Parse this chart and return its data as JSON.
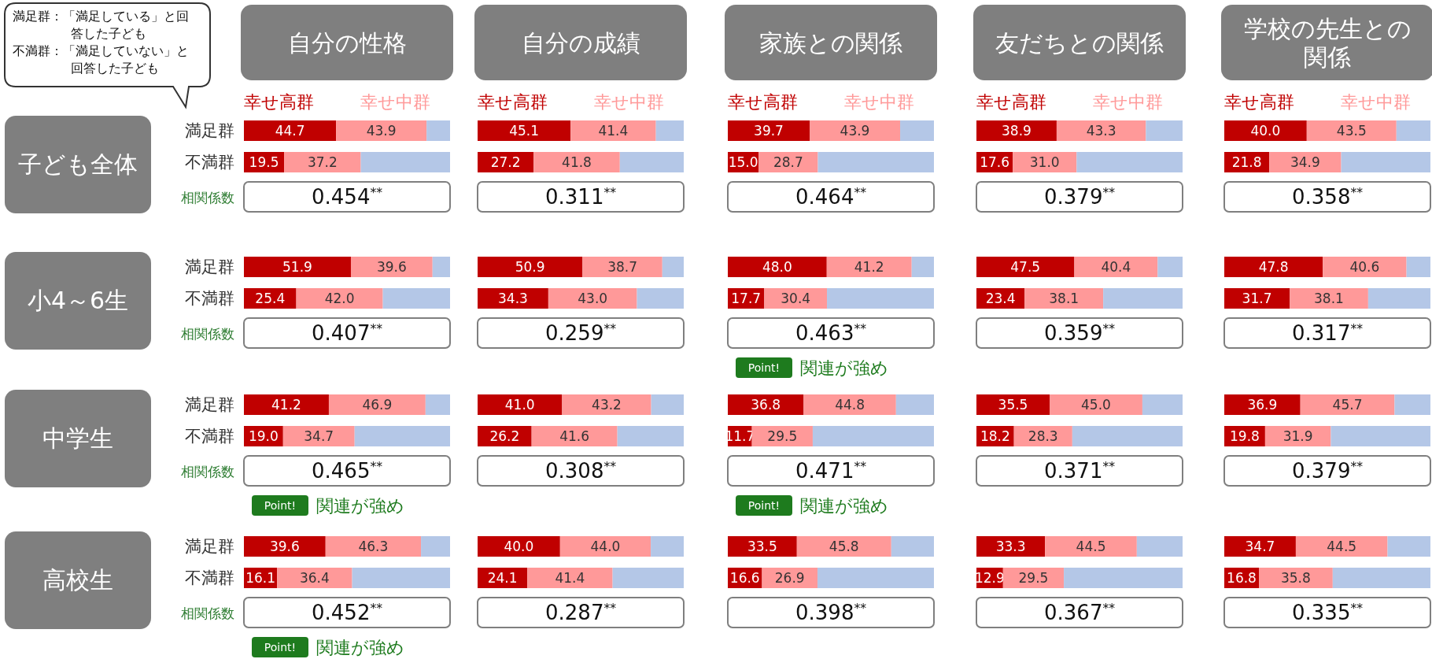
{
  "chart_data": [
    {
      "type": "bar",
      "orientation": "horizontal",
      "stacked": true,
      "title": "自分の性格",
      "ylabel": "子ども全体",
      "categories": [
        "満足群",
        "不満群"
      ],
      "tick_labels": "y",
      "legend": "top",
      "xlim": [
        0,
        100
      ],
      "series": [
        {
          "name": "幸せ高群",
          "color": "#c00000",
          "values": [
            44.7,
            19.5
          ],
          "value_labels": [
            "44.7",
            "19.5"
          ]
        },
        {
          "name": "幸せ中群",
          "color": "#ff9999",
          "values": [
            43.9,
            37.2
          ],
          "value_labels": [
            "43.9",
            "37.2"
          ]
        },
        {
          "color": "#b4c7e7",
          "values": [
            11.4,
            43.3
          ]
        }
      ],
      "annotations": [
        "0.454$^{**}$",
        "相関係数",
        "満足群：「満足している」と回答した子ども",
        "不満群：「満足していない」と回答した子ども"
      ]
    },
    {
      "type": "bar",
      "orientation": "horizontal",
      "stacked": true,
      "title": "自分の成績",
      "categories": [
        null,
        null
      ],
      "tick_labels": false,
      "legend": "top",
      "xlim": [
        0,
        100
      ],
      "series": [
        {
          "name": "幸せ高群",
          "color": "#c00000",
          "values": [
            45.1,
            27.2
          ],
          "value_labels": [
            "45.1",
            "27.2"
          ]
        },
        {
          "name": "幸せ中群",
          "color": "#ff9999",
          "values": [
            41.4,
            41.8
          ],
          "value_labels": [
            "41.4",
            "41.8"
          ]
        },
        {
          "color": "#b4c7e7",
          "values": [
            13.5,
            31.0
          ]
        }
      ],
      "annotations": [
        "0.311$^{**}$"
      ]
    },
    {
      "type": "bar",
      "orientation": "horizontal",
      "stacked": true,
      "title": "家族との関係",
      "categories": [
        null,
        null
      ],
      "tick_labels": false,
      "legend": "top",
      "xlim": [
        0,
        100
      ],
      "series": [
        {
          "name": "幸せ高群",
          "color": "#c00000",
          "values": [
            39.7,
            15.0
          ],
          "value_labels": [
            "39.7",
            "15.0"
          ]
        },
        {
          "name": "幸せ中群",
          "color": "#ff9999",
          "values": [
            43.9,
            28.7
          ],
          "value_labels": [
            "43.9",
            "28.7"
          ]
        },
        {
          "color": "#b4c7e7",
          "values": [
            16.4,
            56.3
          ]
        }
      ],
      "annotations": [
        "0.464$^{**}$"
      ]
    },
    {
      "type": "bar",
      "orientation": "horizontal",
      "stacked": true,
      "title": "友だちとの関係",
      "categories": [
        null,
        null
      ],
      "tick_labels": false,
      "legend": "top",
      "xlim": [
        0,
        100
      ],
      "series": [
        {
          "name": "幸せ高群",
          "color": "#c00000",
          "values": [
            38.9,
            17.6
          ],
          "value_labels": [
            "38.9",
            "17.6"
          ]
        },
        {
          "name": "幸せ中群",
          "color": "#ff9999",
          "values": [
            43.3,
            31.0
          ],
          "value_labels": [
            "43.3",
            "31.0"
          ]
        },
        {
          "color": "#b4c7e7",
          "values": [
            17.8,
            51.4
          ]
        }
      ],
      "annotations": [
        "0.379$^{**}$"
      ]
    },
    {
      "type": "bar",
      "orientation": "horizontal",
      "stacked": true,
      "title": "学校の先生との関係",
      "categories": [
        null,
        null
      ],
      "tick_labels": false,
      "legend": "top",
      "xlim": [
        0,
        100
      ],
      "series": [
        {
          "name": "幸せ高群",
          "color": "#c00000",
          "values": [
            40.0,
            21.8
          ],
          "value_labels": [
            "40.0",
            "21.8"
          ]
        },
        {
          "name": "幸せ中群",
          "color": "#ff9999",
          "values": [
            43.5,
            34.9
          ],
          "value_labels": [
            "43.5",
            "34.9"
          ]
        },
        {
          "color": "#b4c7e7",
          "values": [
            16.5,
            43.3
          ]
        }
      ],
      "annotations": [
        "0.358$^{**}$"
      ]
    },
    {
      "type": "bar",
      "orientation": "horizontal",
      "stacked": true,
      "ylabel": "小4～6生",
      "categories": [
        "満足群",
        "不満群"
      ],
      "tick_labels": "y",
      "xlim": [
        0,
        100
      ],
      "series": [
        {
          "color": "#c00000",
          "values": [
            51.9,
            25.4
          ],
          "value_labels": [
            "51.9",
            "25.4"
          ]
        },
        {
          "color": "#ff9999",
          "values": [
            39.6,
            42.0
          ],
          "value_labels": [
            "39.6",
            "42.0"
          ]
        },
        {
          "color": "#b4c7e7",
          "values": [
            8.5,
            32.6
          ]
        }
      ],
      "annotations": [
        "0.407$^{**}$",
        "相関係数"
      ]
    },
    {
      "type": "bar",
      "orientation": "horizontal",
      "stacked": true,
      "categories": [
        null,
        null
      ],
      "tick_labels": false,
      "xlim": [
        0,
        100
      ],
      "series": [
        {
          "color": "#c00000",
          "values": [
            50.9,
            34.3
          ],
          "value_labels": [
            "50.9",
            "34.3"
          ]
        },
        {
          "color": "#ff9999",
          "values": [
            38.7,
            43.0
          ],
          "value_labels": [
            "38.7",
            "43.0"
          ]
        },
        {
          "color": "#b4c7e7",
          "values": [
            10.4,
            22.7
          ]
        }
      ],
      "annotations": [
        "0.259$^{**}$"
      ]
    },
    {
      "type": "bar",
      "orientation": "horizontal",
      "stacked": true,
      "categories": [
        null,
        null
      ],
      "tick_labels": false,
      "xlim": [
        0,
        100
      ],
      "series": [
        {
          "color": "#c00000",
          "values": [
            48.0,
            17.7
          ],
          "value_labels": [
            "48.0",
            "17.7"
          ]
        },
        {
          "color": "#ff9999",
          "values": [
            41.2,
            30.4
          ],
          "value_labels": [
            "41.2",
            "30.4"
          ]
        },
        {
          "color": "#b4c7e7",
          "values": [
            10.8,
            51.9
          ]
        }
      ],
      "annotations": [
        "0.463$^{**}$",
        "Point!",
        "関連が強め"
      ]
    },
    {
      "type": "bar",
      "orientation": "horizontal",
      "stacked": true,
      "categories": [
        null,
        null
      ],
      "tick_labels": false,
      "xlim": [
        0,
        100
      ],
      "series": [
        {
          "color": "#c00000",
          "values": [
            47.5,
            23.4
          ],
          "value_labels": [
            "47.5",
            "23.4"
          ]
        },
        {
          "color": "#ff9999",
          "values": [
            40.4,
            38.1
          ],
          "value_labels": [
            "40.4",
            "38.1"
          ]
        },
        {
          "color": "#b4c7e7",
          "values": [
            12.1,
            38.5
          ]
        }
      ],
      "annotations": [
        "0.359$^{**}$"
      ]
    },
    {
      "type": "bar",
      "orientation": "horizontal",
      "stacked": true,
      "categories": [
        null,
        null
      ],
      "tick_labels": false,
      "xlim": [
        0,
        100
      ],
      "series": [
        {
          "color": "#c00000",
          "values": [
            47.8,
            31.7
          ],
          "value_labels": [
            "47.8",
            "31.7"
          ]
        },
        {
          "color": "#ff9999",
          "values": [
            40.6,
            38.1
          ],
          "value_labels": [
            "40.6",
            "38.1"
          ]
        },
        {
          "color": "#b4c7e7",
          "values": [
            11.6,
            30.2
          ]
        }
      ],
      "annotations": [
        "0.317$^{**}$"
      ]
    },
    {
      "type": "bar",
      "orientation": "horizontal",
      "stacked": true,
      "ylabel": "中学生",
      "categories": [
        "満足群",
        "不満群"
      ],
      "tick_labels": "y",
      "xlim": [
        0,
        100
      ],
      "series": [
        {
          "color": "#c00000",
          "values": [
            41.2,
            19.0
          ],
          "value_labels": [
            "41.2",
            "19.0"
          ]
        },
        {
          "color": "#ff9999",
          "values": [
            46.9,
            34.7
          ],
          "value_labels": [
            "46.9",
            "34.7"
          ]
        },
        {
          "color": "#b4c7e7",
          "values": [
            11.9,
            46.3
          ]
        }
      ],
      "annotations": [
        "0.465$^{**}$",
        "相関係数",
        "Point!",
        "関連が強め"
      ]
    },
    {
      "type": "bar",
      "orientation": "horizontal",
      "stacked": true,
      "categories": [
        null,
        null
      ],
      "tick_labels": false,
      "xlim": [
        0,
        100
      ],
      "series": [
        {
          "color": "#c00000",
          "values": [
            41.0,
            26.2
          ],
          "value_labels": [
            "41.0",
            "26.2"
          ]
        },
        {
          "color": "#ff9999",
          "values": [
            43.2,
            41.6
          ],
          "value_labels": [
            "43.2",
            "41.6"
          ]
        },
        {
          "color": "#b4c7e7",
          "values": [
            15.8,
            32.2
          ]
        }
      ],
      "annotations": [
        "0.308$^{**}$"
      ]
    },
    {
      "type": "bar",
      "orientation": "horizontal",
      "stacked": true,
      "categories": [
        null,
        null
      ],
      "tick_labels": false,
      "xlim": [
        0,
        100
      ],
      "series": [
        {
          "color": "#c00000",
          "values": [
            36.8,
            11.7
          ],
          "value_labels": [
            "36.8",
            "11.7"
          ]
        },
        {
          "color": "#ff9999",
          "values": [
            44.8,
            29.5
          ],
          "value_labels": [
            "44.8",
            "29.5"
          ]
        },
        {
          "color": "#b4c7e7",
          "values": [
            18.4,
            58.8
          ]
        }
      ],
      "annotations": [
        "0.471$^{**}$",
        "Point!",
        "関連が強め"
      ]
    },
    {
      "type": "bar",
      "orientation": "horizontal",
      "stacked": true,
      "categories": [
        null,
        null
      ],
      "tick_labels": false,
      "xlim": [
        0,
        100
      ],
      "series": [
        {
          "color": "#c00000",
          "values": [
            35.5,
            18.2
          ],
          "value_labels": [
            "35.5",
            "18.2"
          ]
        },
        {
          "color": "#ff9999",
          "values": [
            45.0,
            28.3
          ],
          "value_labels": [
            "45.0",
            "28.3"
          ]
        },
        {
          "color": "#b4c7e7",
          "values": [
            19.5,
            53.5
          ]
        }
      ],
      "annotations": [
        "0.371$^{**}$"
      ]
    },
    {
      "type": "bar",
      "orientation": "horizontal",
      "stacked": true,
      "categories": [
        null,
        null
      ],
      "tick_labels": false,
      "xlim": [
        0,
        100
      ],
      "series": [
        {
          "color": "#c00000",
          "values": [
            36.9,
            19.8
          ],
          "value_labels": [
            "36.9",
            "19.8"
          ]
        },
        {
          "color": "#ff9999",
          "values": [
            45.7,
            31.9
          ],
          "value_labels": [
            "45.7",
            "31.9"
          ]
        },
        {
          "color": "#b4c7e7",
          "values": [
            17.4,
            48.3
          ]
        }
      ],
      "annotations": [
        "0.379$^{**}$"
      ]
    },
    {
      "type": "bar",
      "orientation": "horizontal",
      "stacked": true,
      "ylabel": "高校生",
      "categories": [
        "満足群",
        "不満群"
      ],
      "tick_labels": "y",
      "xlim": [
        0,
        100
      ],
      "series": [
        {
          "color": "#c00000",
          "values": [
            39.6,
            16.1
          ],
          "value_labels": [
            "39.6",
            "16.1"
          ]
        },
        {
          "color": "#ff9999",
          "values": [
            46.3,
            36.4
          ],
          "value_labels": [
            "46.3",
            "36.4"
          ]
        },
        {
          "color": "#b4c7e7",
          "values": [
            14.1,
            47.5
          ]
        }
      ],
      "annotations": [
        "0.452$^{**}$",
        "相関係数",
        "Point!",
        "関連が強め"
      ]
    },
    {
      "type": "bar",
      "orientation": "horizontal",
      "stacked": true,
      "categories": [
        null,
        null
      ],
      "tick_labels": false,
      "xlim": [
        0,
        100
      ],
      "series": [
        {
          "color": "#c00000",
          "values": [
            40.0,
            24.1
          ],
          "value_labels": [
            "40.0",
            "24.1"
          ]
        },
        {
          "color": "#ff9999",
          "values": [
            44.0,
            41.4
          ],
          "value_labels": [
            "44.0",
            "41.4"
          ]
        },
        {
          "color": "#b4c7e7",
          "values": [
            16.0,
            34.5
          ]
        }
      ],
      "annotations": [
        "0.287$^{**}$"
      ]
    },
    {
      "type": "bar",
      "orientation": "horizontal",
      "stacked": true,
      "categories": [
        null,
        null
      ],
      "tick_labels": false,
      "xlim": [
        0,
        100
      ],
      "series": [
        {
          "color": "#c00000",
          "values": [
            33.5,
            16.6
          ],
          "value_labels": [
            "33.5",
            "16.6"
          ]
        },
        {
          "color": "#ff9999",
          "values": [
            45.8,
            26.9
          ],
          "value_labels": [
            "45.8",
            "26.9"
          ]
        },
        {
          "color": "#b4c7e7",
          "values": [
            20.7,
            56.5
          ]
        }
      ],
      "annotations": [
        "0.398$^{**}$"
      ]
    },
    {
      "type": "bar",
      "orientation": "horizontal",
      "stacked": true,
      "categories": [
        null,
        null
      ],
      "tick_labels": false,
      "xlim": [
        0,
        100
      ],
      "series": [
        {
          "color": "#c00000",
          "values": [
            33.3,
            12.9
          ],
          "value_labels": [
            "33.3",
            "12.9"
          ]
        },
        {
          "color": "#ff9999",
          "values": [
            44.5,
            29.5
          ],
          "value_labels": [
            "44.5",
            "29.5"
          ]
        },
        {
          "color": "#b4c7e7",
          "values": [
            22.2,
            57.6
          ]
        }
      ],
      "annotations": [
        "0.367$^{**}$"
      ]
    },
    {
      "type": "bar",
      "orientation": "horizontal",
      "stacked": true,
      "categories": [
        null,
        null
      ],
      "tick_labels": false,
      "xlim": [
        0,
        100
      ],
      "series": [
        {
          "color": "#c00000",
          "values": [
            34.7,
            16.8
          ],
          "value_labels": [
            "34.7",
            "16.8"
          ]
        },
        {
          "color": "#ff9999",
          "values": [
            44.5,
            35.8
          ],
          "value_labels": [
            "44.5",
            "35.8"
          ]
        },
        {
          "color": "#b4c7e7",
          "values": [
            20.8,
            47.4
          ]
        }
      ],
      "annotations": [
        "0.335$^{**}$"
      ]
    }
  ]
}
